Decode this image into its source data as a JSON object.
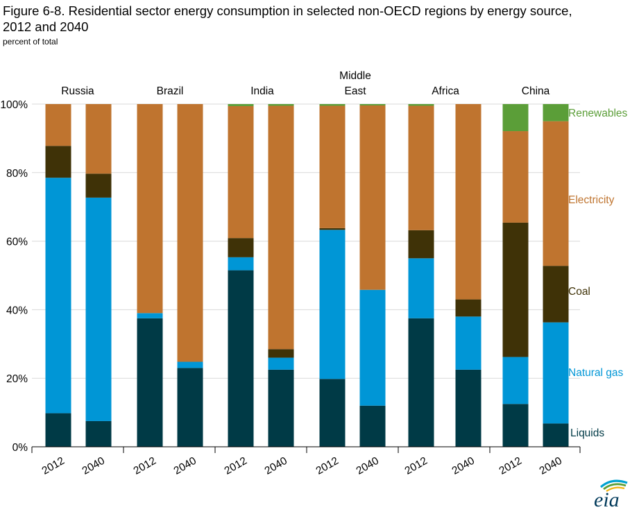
{
  "title_line1": "Figure 6-8. Residential sector energy consumption in selected non-OECD regions by energy source,",
  "title_line2": "2012 and 2040",
  "subtitle": "percent of total",
  "logo_text": "eia",
  "chart_data": {
    "type": "bar",
    "stacked": true,
    "regions": [
      "Russia",
      "Brazil",
      "India",
      "Middle East",
      "Africa",
      "China"
    ],
    "region_label_lines": [
      [
        "Russia"
      ],
      [
        "Brazil"
      ],
      [
        "India"
      ],
      [
        "Middle",
        "East"
      ],
      [
        "Africa"
      ],
      [
        "China"
      ]
    ],
    "categories": [
      "2012",
      "2040",
      "2012",
      "2040",
      "2012",
      "2040",
      "2012",
      "2040",
      "2012",
      "2040",
      "2012",
      "2040"
    ],
    "ylim": [
      0,
      100
    ],
    "yticks": [
      "0%",
      "20%",
      "40%",
      "60%",
      "80%",
      "100%"
    ],
    "grid": true,
    "series": [
      {
        "name": "Liquids",
        "color": "#003a46",
        "label_color": "#003a46",
        "values": [
          9.8,
          7.5,
          37.5,
          23.0,
          51.5,
          22.5,
          19.8,
          12.0,
          37.5,
          22.5,
          12.5,
          6.8
        ]
      },
      {
        "name": "Natural gas",
        "color": "#0096d6",
        "label_color": "#0096d6",
        "values": [
          68.7,
          65.2,
          1.5,
          1.8,
          3.8,
          3.5,
          43.5,
          33.8,
          17.5,
          15.5,
          13.7,
          29.5
        ]
      },
      {
        "name": "Coal",
        "color": "#3f3207",
        "label_color": "#3f3207",
        "values": [
          9.3,
          7.0,
          0,
          0,
          5.6,
          2.5,
          0.5,
          0,
          8.2,
          5.0,
          39.2,
          16.5
        ]
      },
      {
        "name": "Electricity",
        "color": "#bf742f",
        "label_color": "#bf742f",
        "values": [
          12.2,
          20.3,
          61.0,
          75.2,
          38.5,
          71.0,
          35.7,
          53.8,
          36.3,
          57.0,
          26.7,
          42.2
        ]
      },
      {
        "name": "Renewables",
        "color": "#5b9e38",
        "label_color": "#5b9e38",
        "values": [
          0,
          0,
          0,
          0,
          0.6,
          0.5,
          0.5,
          0.4,
          0.5,
          0,
          7.9,
          5.0
        ]
      }
    ],
    "legend_placement": "right, aligned with series"
  }
}
